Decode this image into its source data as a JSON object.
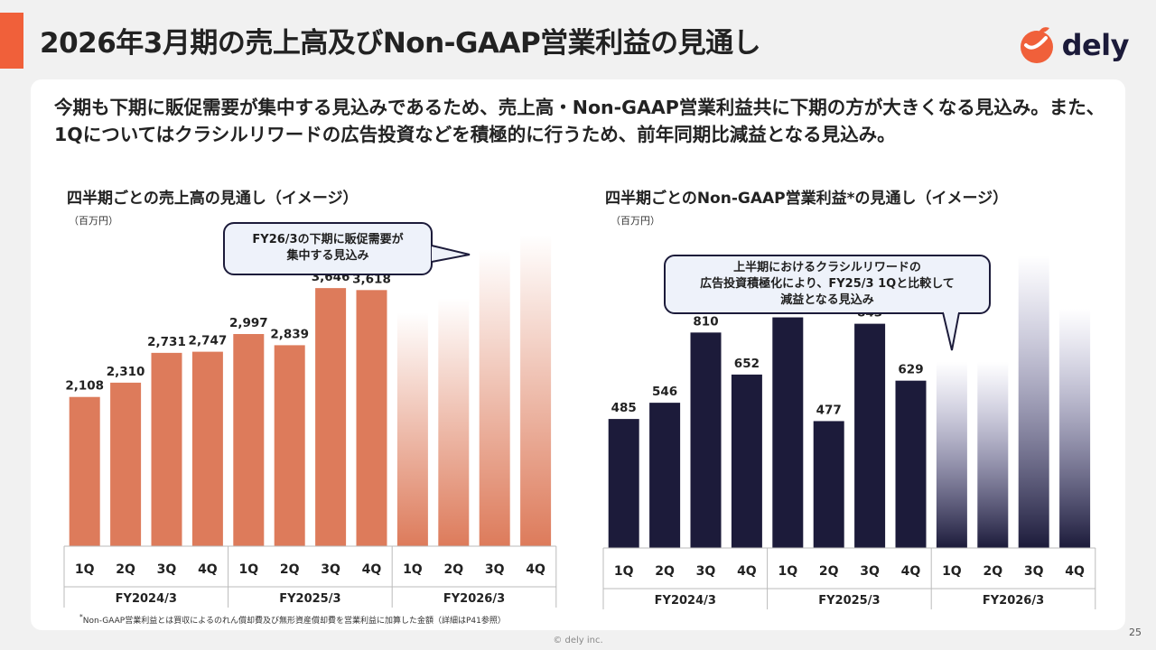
{
  "header": {
    "title": "2026年3月期の売上高及びNon-GAAP営業利益の見通し",
    "logo_text": "dely"
  },
  "lead": "今期も下期に販促需要が集中する見込みであるため、売上高・Non-GAAP営業利益共に下期の方が大きくなる見込み。また、1Qについてはクラシルリワードの広告投資などを積極的に行うため、前年同期比減益となる見込み。",
  "callouts": {
    "sales": "FY26/3の下期に販促需要が\n集中する見込み",
    "profit": "上半期におけるクラシルリワードの\n広告投資積極化により、FY25/3 1Qと比較して\n減益となる見込み"
  },
  "footnote_mark": "*",
  "footnote": "Non-GAAP営業利益とは買収によるのれん償却費及び無形資産償却費を営業利益に加算した金額（詳細はP41参照）",
  "page_number": "25",
  "copyright": "© dely inc.",
  "colors": {
    "accent": "#f0603a",
    "sales_bar": "#dd7b5b",
    "profit_bar": "#1c1b3a",
    "profit_fade": "#5f5b9e"
  },
  "chart_data": [
    {
      "type": "bar",
      "title": "四半期ごとの売上高の見通し（イメージ）",
      "unit": "（百万円）",
      "categories": [
        "1Q",
        "2Q",
        "3Q",
        "4Q",
        "1Q",
        "2Q",
        "3Q",
        "4Q",
        "1Q",
        "2Q",
        "3Q",
        "4Q"
      ],
      "groups": [
        {
          "label": "FY2024/3",
          "count": 4
        },
        {
          "label": "FY2025/3",
          "count": 4
        },
        {
          "label": "FY2026/3",
          "count": 4
        }
      ],
      "values": [
        2108,
        2310,
        2731,
        2747,
        2997,
        2839,
        3646,
        3618,
        null,
        null,
        null,
        null
      ],
      "value_labels": [
        "2,108",
        "2,310",
        "2,731",
        "2,747",
        "2,997",
        "2,839",
        "3,646",
        "3,618",
        "",
        "",
        "",
        ""
      ],
      "forecast_image_values": [
        3300,
        3500,
        4200,
        4400
      ],
      "ylim": [
        0,
        4400
      ]
    },
    {
      "type": "bar",
      "title": "四半期ごとのNon-GAAP営業利益*の見通し（イメージ）",
      "unit": "（百万円）",
      "categories": [
        "1Q",
        "2Q",
        "3Q",
        "4Q",
        "1Q",
        "2Q",
        "3Q",
        "4Q",
        "1Q",
        "2Q",
        "3Q",
        "4Q"
      ],
      "groups": [
        {
          "label": "FY2024/3",
          "count": 4
        },
        {
          "label": "FY2025/3",
          "count": 4
        },
        {
          "label": "FY2026/3",
          "count": 4
        }
      ],
      "values": [
        485,
        546,
        810,
        652,
        867,
        477,
        843,
        629,
        null,
        null,
        null,
        null
      ],
      "value_labels": [
        "485",
        "546",
        "810",
        "652",
        "867",
        "477",
        "843",
        "629",
        "",
        "",
        "",
        ""
      ],
      "forecast_image_values": [
        700,
        700,
        1100,
        900
      ],
      "ylim": [
        0,
        1120
      ]
    }
  ]
}
